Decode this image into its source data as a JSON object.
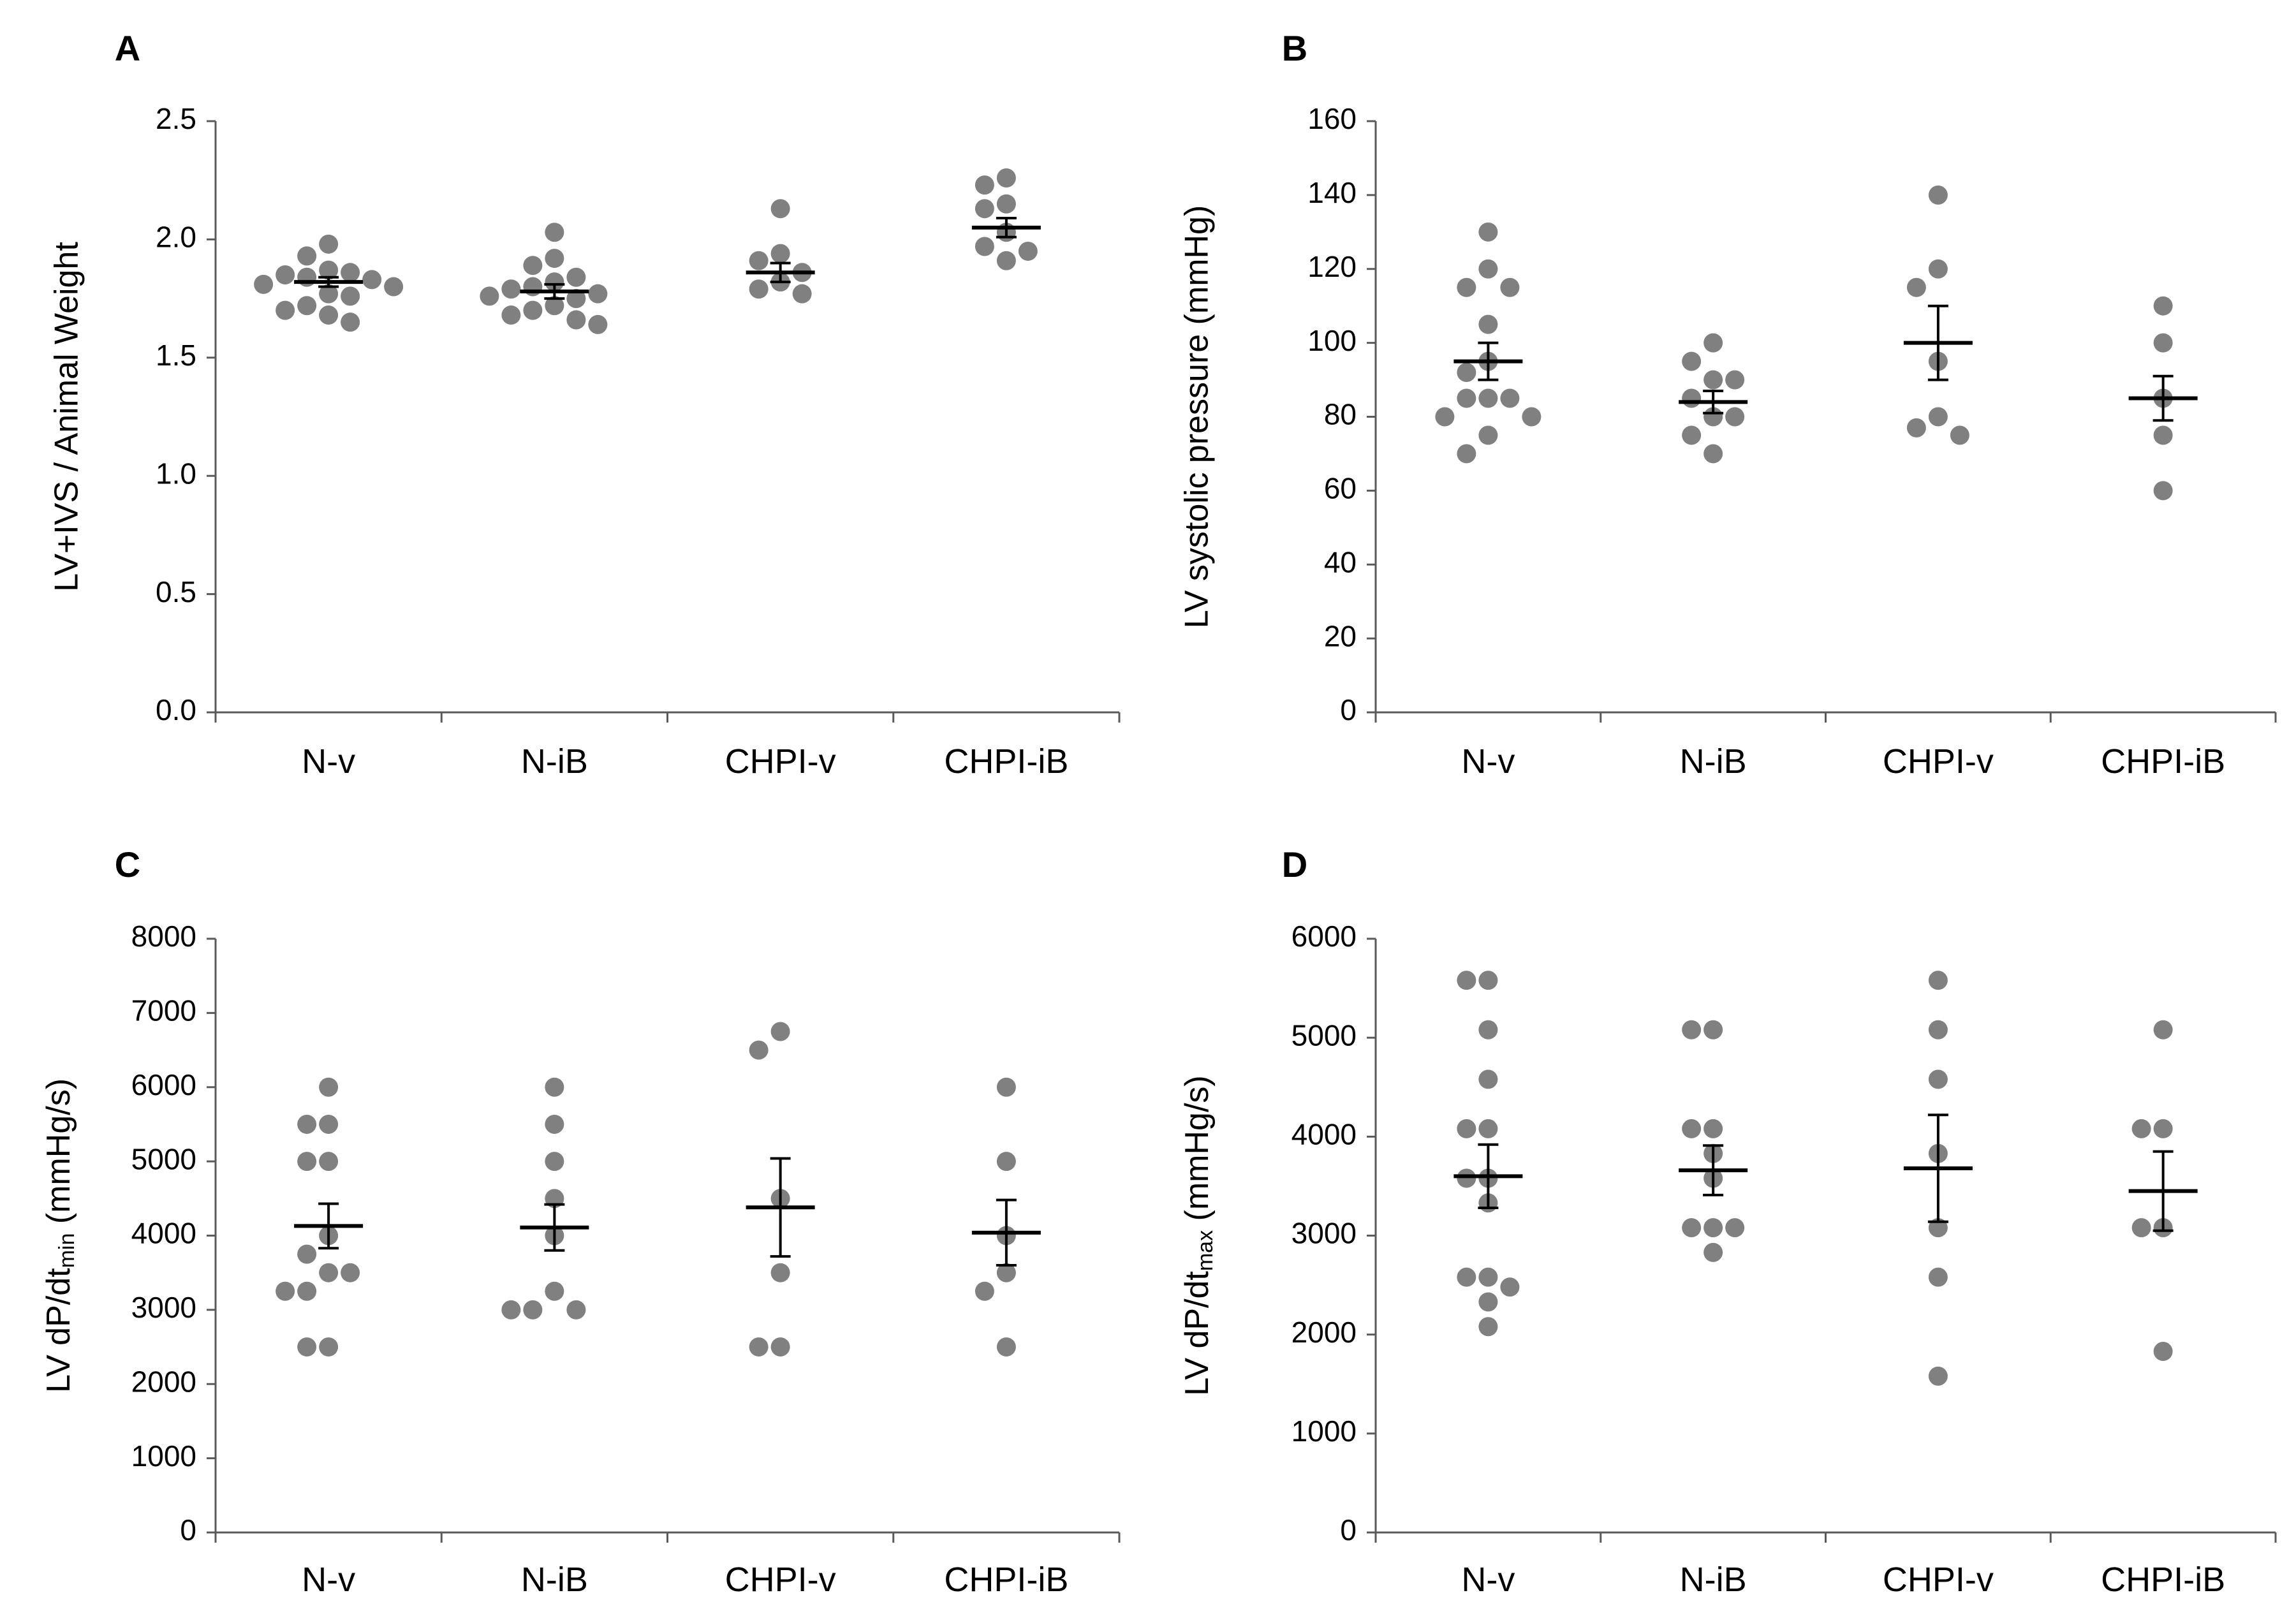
{
  "chart_data": [
    {
      "type": "scatter",
      "panel": "A",
      "ylabel": "LV+IVS / Animal Weight",
      "ylim": [
        0,
        2.5
      ],
      "yticks": [
        0.0,
        0.5,
        1.0,
        1.5,
        2.0,
        2.5
      ],
      "ytick_labels": [
        "0.0",
        "0.5",
        "1.0",
        "1.5",
        "2.0",
        "2.5"
      ],
      "categories": [
        "N-v",
        "N-iB",
        "CHPI-v",
        "CHPI-iB"
      ],
      "points": [
        [
          1.98,
          1.93,
          1.87,
          1.86,
          1.85,
          1.84,
          1.83,
          1.81,
          1.8,
          1.77,
          1.76,
          1.72,
          1.7,
          1.68,
          1.65
        ],
        [
          2.03,
          1.92,
          1.89,
          1.84,
          1.82,
          1.8,
          1.79,
          1.77,
          1.76,
          1.75,
          1.72,
          1.7,
          1.68,
          1.66,
          1.64
        ],
        [
          2.13,
          1.94,
          1.91,
          1.86,
          1.82,
          1.79,
          1.77
        ],
        [
          2.26,
          2.23,
          2.15,
          2.13,
          2.03,
          1.97,
          1.95,
          1.91
        ]
      ],
      "means": [
        1.82,
        1.78,
        1.86,
        2.05
      ],
      "sem": [
        0.02,
        0.03,
        0.04,
        0.04
      ],
      "color": "#808080",
      "mean_color": "#000000"
    },
    {
      "type": "scatter",
      "panel": "B",
      "ylabel": "LV systolic pressure (mmHg)",
      "ylim": [
        0,
        160
      ],
      "yticks": [
        0,
        20,
        40,
        60,
        80,
        100,
        120,
        140,
        160
      ],
      "ytick_labels": [
        "0",
        "20",
        "40",
        "60",
        "80",
        "100",
        "120",
        "140",
        "160"
      ],
      "categories": [
        "N-v",
        "N-iB",
        "CHPI-v",
        "CHPI-iB"
      ],
      "points": [
        [
          130,
          120,
          115,
          115,
          105,
          95,
          92,
          85,
          85,
          85,
          80,
          80,
          75,
          70
        ],
        [
          100,
          95,
          90,
          90,
          85,
          80,
          80,
          75,
          70
        ],
        [
          140,
          120,
          115,
          95,
          80,
          77,
          75
        ],
        [
          110,
          100,
          85,
          75,
          60
        ]
      ],
      "means": [
        95,
        84,
        100,
        85
      ],
      "sem": [
        5,
        3,
        10,
        6
      ],
      "color": "#808080",
      "mean_color": "#000000"
    },
    {
      "type": "scatter",
      "panel": "C",
      "ylabel": "LV dP/dt",
      "ylabel_sub": "min",
      "ylabel_suffix": " (mmHg/s)",
      "ylim": [
        0,
        8000
      ],
      "yticks": [
        0,
        1000,
        2000,
        3000,
        4000,
        5000,
        6000,
        7000,
        8000
      ],
      "ytick_labels": [
        "0",
        "1000",
        "2000",
        "3000",
        "4000",
        "5000",
        "6000",
        "7000",
        "8000"
      ],
      "categories": [
        "N-v",
        "N-iB",
        "CHPI-v",
        "CHPI-iB"
      ],
      "points": [
        [
          6000,
          5500,
          5500,
          5000,
          5000,
          4000,
          3750,
          3500,
          3500,
          3250,
          3250,
          2500,
          2500
        ],
        [
          6000,
          5500,
          5000,
          4500,
          4000,
          3250,
          3000,
          3000,
          3000
        ],
        [
          6750,
          6500,
          4500,
          3500,
          2500,
          2500
        ],
        [
          6000,
          5000,
          4000,
          3500,
          3250,
          2500
        ]
      ],
      "means": [
        4130,
        4110,
        4380,
        4040
      ],
      "sem": [
        300,
        310,
        660,
        440
      ],
      "color": "#808080",
      "mean_color": "#000000"
    },
    {
      "type": "scatter",
      "panel": "D",
      "ylabel": "LV dP/dt",
      "ylabel_sub": "max",
      "ylabel_suffix": " (mmHg/s)",
      "ylim": [
        0,
        6000
      ],
      "yticks": [
        0,
        1000,
        2000,
        3000,
        4000,
        5000,
        6000
      ],
      "ytick_labels": [
        "0",
        "1000",
        "2000",
        "3000",
        "4000",
        "5000",
        "6000"
      ],
      "categories": [
        "N-v",
        "N-iB",
        "CHPI-v",
        "CHPI-iB"
      ],
      "points": [
        [
          5580,
          5580,
          5080,
          4580,
          4080,
          4080,
          3580,
          3580,
          3330,
          2580,
          2580,
          2480,
          2330,
          2080
        ],
        [
          5080,
          5080,
          4080,
          4080,
          3830,
          3580,
          3080,
          3080,
          3080,
          2830
        ],
        [
          5580,
          5080,
          4580,
          3830,
          3080,
          2580,
          1580
        ],
        [
          5080,
          4080,
          4080,
          3080,
          3080,
          1830
        ]
      ],
      "means": [
        3600,
        3660,
        3680,
        3450
      ],
      "sem": [
        320,
        250,
        540,
        400
      ],
      "color": "#808080",
      "mean_color": "#000000"
    }
  ]
}
